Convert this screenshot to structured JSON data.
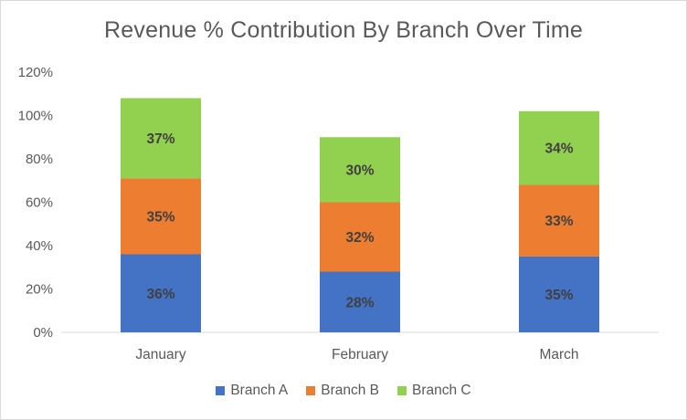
{
  "chart_data": {
    "type": "bar",
    "stacked": true,
    "title": "Revenue % Contribution By Branch Over Time",
    "categories": [
      "January",
      "February",
      "March"
    ],
    "series": [
      {
        "name": "Branch A",
        "values": [
          36,
          28,
          35
        ],
        "labels": [
          "36%",
          "28%",
          "35%"
        ],
        "color": "#4472c4"
      },
      {
        "name": "Branch B",
        "values": [
          35,
          32,
          33
        ],
        "labels": [
          "35%",
          "32%",
          "33%"
        ],
        "color": "#ed7d31"
      },
      {
        "name": "Branch C",
        "values": [
          37,
          30,
          34
        ],
        "labels": [
          "37%",
          "30%",
          "34%"
        ],
        "color": "#92d050"
      }
    ],
    "ylim": [
      0,
      120
    ],
    "yticks": [
      0,
      20,
      40,
      60,
      80,
      100,
      120
    ],
    "ytick_labels": [
      "0%",
      "20%",
      "40%",
      "60%",
      "80%",
      "100%",
      "120%"
    ],
    "xlabel": "",
    "ylabel": "",
    "grid": false,
    "legend_position": "bottom"
  }
}
